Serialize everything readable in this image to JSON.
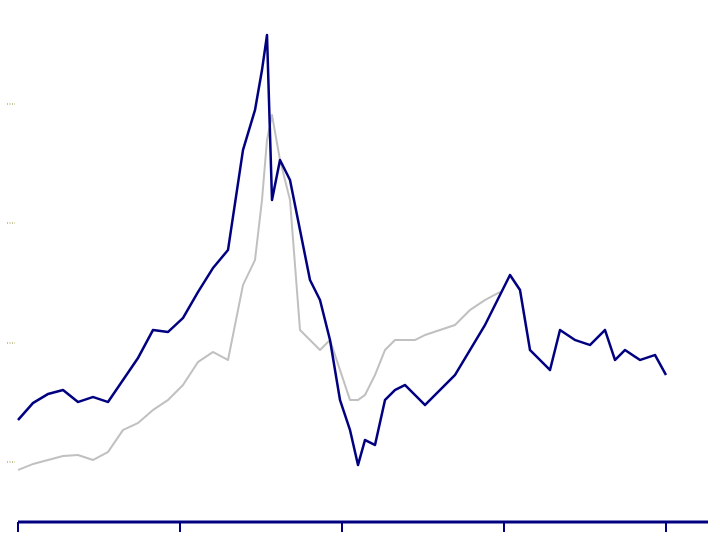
{
  "chart_data": {
    "type": "line",
    "x": [
      18,
      33,
      48,
      63,
      78,
      93,
      108,
      123,
      138,
      153,
      168,
      183,
      198,
      213,
      228,
      243,
      255,
      262,
      267,
      272,
      280,
      290,
      300,
      310,
      320,
      330,
      340,
      350,
      358,
      365,
      375,
      385,
      395,
      405,
      415,
      425,
      440,
      455,
      470,
      485,
      500,
      510,
      520,
      530,
      540,
      550,
      560,
      575,
      590,
      605,
      615,
      625,
      640,
      655,
      666
    ],
    "series": [
      {
        "color": "#c0c0c0",
        "values": [
          70,
          76,
          80,
          84,
          85,
          80,
          88,
          110,
          117,
          130,
          140,
          155,
          178,
          188,
          180,
          255,
          280,
          340,
          400,
          425,
          380,
          340,
          210,
          200,
          190,
          200,
          170,
          140,
          140,
          145,
          165,
          190,
          200,
          200,
          200,
          205,
          210,
          215,
          230,
          240,
          248,
          null,
          null,
          null,
          null,
          null,
          null,
          null,
          null,
          null,
          null,
          null,
          null,
          null,
          null
        ]
      },
      {
        "color": "#000080",
        "values": [
          120,
          137,
          146,
          150,
          138,
          143,
          138,
          160,
          182,
          210,
          208,
          222,
          248,
          272,
          290,
          390,
          430,
          470,
          505,
          340,
          380,
          360,
          310,
          260,
          240,
          200,
          140,
          110,
          75,
          100,
          95,
          140,
          150,
          155,
          145,
          135,
          150,
          165,
          190,
          215,
          245,
          265,
          250,
          190,
          180,
          170,
          210,
          200,
          195,
          210,
          180,
          190,
          180,
          185,
          165
        ]
      }
    ],
    "xlim": [
      0,
      720
    ],
    "ylim": [
      0,
      540
    ],
    "xticks": [
      18,
      180,
      342,
      504,
      666
    ],
    "yticks": [
      78,
      197,
      317,
      436
    ]
  }
}
